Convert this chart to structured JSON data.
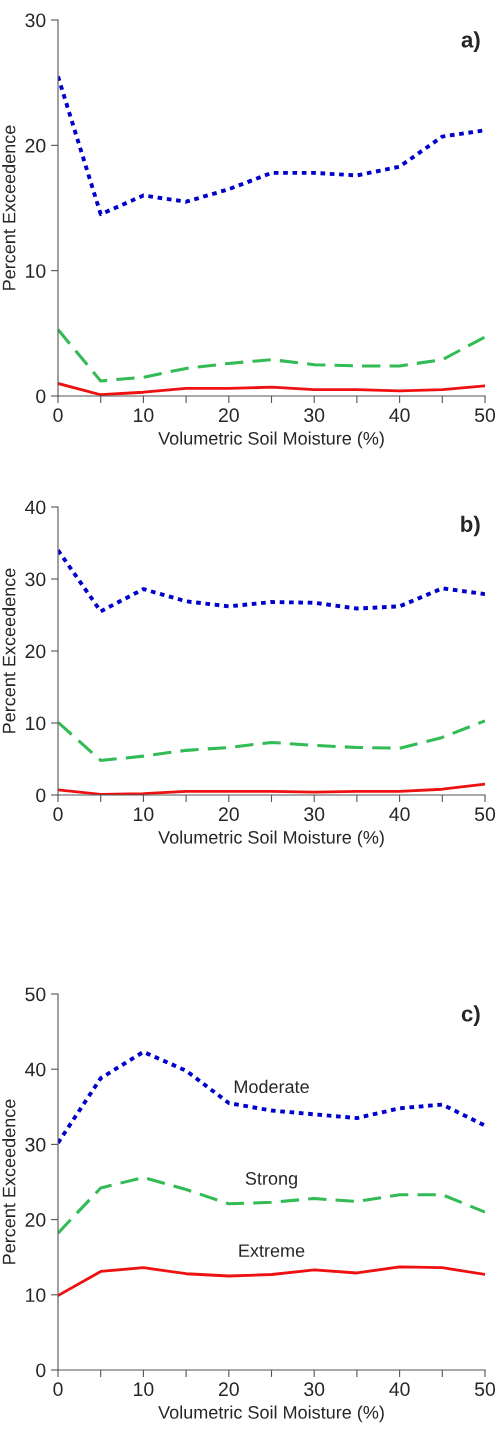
{
  "chart_data": [
    {
      "type": "line",
      "title": "a)",
      "xlabel": "Volumetric Soil Moisture (%)",
      "ylabel": "Percent Exceedence",
      "x": [
        0,
        5,
        10,
        15,
        20,
        25,
        30,
        35,
        40,
        45,
        50
      ],
      "xlim": [
        0,
        50
      ],
      "ylim": [
        0,
        30
      ],
      "yticks": [
        0,
        10,
        20,
        30
      ],
      "xticks": [
        0,
        {
          "value": 5,
          "label": null
        },
        10,
        {
          "value": 15,
          "label": null
        },
        20,
        {
          "value": 25,
          "label": null
        },
        30,
        {
          "value": 35,
          "label": null
        },
        40,
        {
          "value": 45,
          "label": null
        },
        50
      ],
      "grid": false,
      "legend": false,
      "series": [
        {
          "color": "#0000cc",
          "line_style": "dotted",
          "values": [
            25.5,
            14.5,
            16,
            15.5,
            16.5,
            17.8,
            17.8,
            17.6,
            18.3,
            20.7,
            21.2
          ]
        },
        {
          "color": "#33bb55",
          "line_style": "dashed",
          "values": [
            5.3,
            1.2,
            1.5,
            2.2,
            2.6,
            2.9,
            2.5,
            2.4,
            2.4,
            2.9,
            4.7
          ]
        },
        {
          "color": "#ee1111",
          "line_style": "solid",
          "values": [
            1.0,
            0.1,
            0.3,
            0.6,
            0.6,
            0.7,
            0.5,
            0.5,
            0.4,
            0.5,
            0.8
          ]
        }
      ]
    },
    {
      "type": "line",
      "title": "b)",
      "xlabel": "Volumetric Soil Moisture (%)",
      "ylabel": "Percent Exceedence",
      "x": [
        0,
        5,
        10,
        15,
        20,
        25,
        30,
        35,
        40,
        45,
        50
      ],
      "xlim": [
        0,
        50
      ],
      "ylim": [
        0,
        40
      ],
      "yticks": [
        0,
        10,
        20,
        30,
        40
      ],
      "xticks": [
        0,
        {
          "value": 5,
          "label": null
        },
        10,
        {
          "value": 15,
          "label": null
        },
        20,
        {
          "value": 25,
          "label": null
        },
        30,
        {
          "value": 35,
          "label": null
        },
        40,
        {
          "value": 45,
          "label": null
        },
        50
      ],
      "grid": false,
      "legend": false,
      "series": [
        {
          "color": "#0000cc",
          "line_style": "dotted",
          "values": [
            34,
            25.5,
            28.6,
            26.9,
            26.2,
            26.8,
            26.7,
            25.9,
            26.2,
            28.7,
            27.9
          ]
        },
        {
          "color": "#33bb55",
          "line_style": "dashed",
          "values": [
            10.1,
            4.8,
            5.4,
            6.2,
            6.6,
            7.3,
            6.9,
            6.6,
            6.5,
            8.0,
            10.3
          ]
        },
        {
          "color": "#ee1111",
          "line_style": "solid",
          "values": [
            0.7,
            0.1,
            0.2,
            0.5,
            0.5,
            0.5,
            0.4,
            0.5,
            0.5,
            0.8,
            1.5
          ]
        }
      ]
    },
    {
      "type": "line",
      "title": "c)",
      "xlabel": "Volumetric Soil Moisture (%)",
      "ylabel": "Percent Exceedence",
      "x": [
        0,
        5,
        10,
        15,
        20,
        25,
        30,
        35,
        40,
        45,
        50
      ],
      "xlim": [
        0,
        50
      ],
      "ylim": [
        0,
        50
      ],
      "yticks": [
        0,
        10,
        20,
        30,
        40,
        50
      ],
      "xticks": [
        0,
        {
          "value": 5,
          "label": null
        },
        10,
        {
          "value": 15,
          "label": null
        },
        20,
        {
          "value": 25,
          "label": null
        },
        30,
        {
          "value": 35,
          "label": null
        },
        40,
        {
          "value": 45,
          "label": null
        },
        50
      ],
      "grid": false,
      "legend": false,
      "series": [
        {
          "name": "Moderate",
          "color": "#0000cc",
          "line_style": "dotted",
          "values": [
            30.2,
            38.8,
            42.3,
            39.8,
            35.5,
            34.5,
            34.0,
            33.5,
            34.8,
            35.3,
            32.5
          ]
        },
        {
          "name": "Strong",
          "color": "#33bb55",
          "line_style": "dashed",
          "values": [
            18.2,
            24.2,
            25.6,
            24,
            22.1,
            22.3,
            22.8,
            22.4,
            23.3,
            23.3,
            21.0
          ]
        },
        {
          "name": "Extreme",
          "color": "#ee1111",
          "line_style": "solid",
          "values": [
            9.9,
            13.1,
            13.6,
            12.8,
            12.5,
            12.7,
            13.3,
            12.9,
            13.7,
            13.6,
            12.7
          ]
        }
      ]
    }
  ]
}
